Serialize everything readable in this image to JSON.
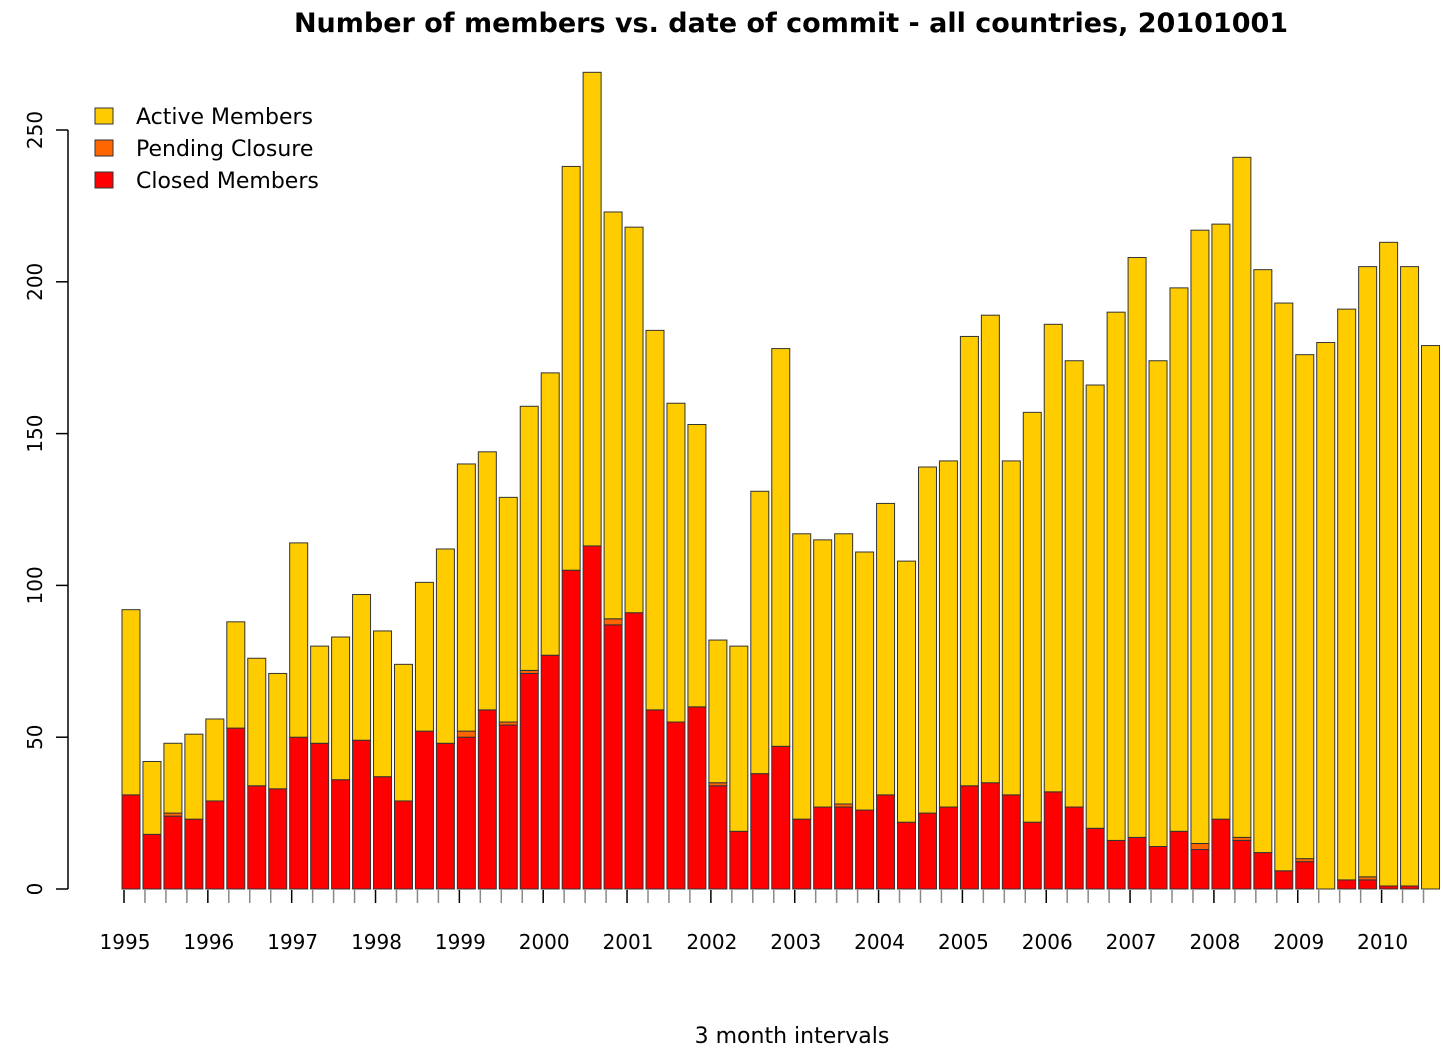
{
  "chart_data": {
    "type": "bar",
    "stacked": true,
    "title": "Number of members vs. date of commit - all countries,  20101001",
    "xlabel": "3 month intervals",
    "ylabel": "",
    "ylim": [
      0,
      270
    ],
    "yticks": [
      0,
      50,
      100,
      150,
      200,
      250
    ],
    "grid": false,
    "legend_position": "top-left",
    "xtick_labels": [
      "1995",
      "1996",
      "1997",
      "1998",
      "1999",
      "2000",
      "2001",
      "2002",
      "2003",
      "2004",
      "2005",
      "2006",
      "2007",
      "2008",
      "2009",
      "2010"
    ],
    "categories": [
      "1995 Q1",
      "1995 Q2",
      "1995 Q3",
      "1995 Q4",
      "1996 Q1",
      "1996 Q2",
      "1996 Q3",
      "1996 Q4",
      "1997 Q1",
      "1997 Q2",
      "1997 Q3",
      "1997 Q4",
      "1998 Q1",
      "1998 Q2",
      "1998 Q3",
      "1998 Q4",
      "1999 Q1",
      "1999 Q2",
      "1999 Q3",
      "1999 Q4",
      "2000 Q1",
      "2000 Q2",
      "2000 Q3",
      "2000 Q4",
      "2001 Q1",
      "2001 Q2",
      "2001 Q3",
      "2001 Q4",
      "2002 Q1",
      "2002 Q2",
      "2002 Q3",
      "2002 Q4",
      "2003 Q1",
      "2003 Q2",
      "2003 Q3",
      "2003 Q4",
      "2004 Q1",
      "2004 Q2",
      "2004 Q3",
      "2004 Q4",
      "2005 Q1",
      "2005 Q2",
      "2005 Q3",
      "2005 Q4",
      "2006 Q1",
      "2006 Q2",
      "2006 Q3",
      "2006 Q4",
      "2007 Q1",
      "2007 Q2",
      "2007 Q3",
      "2007 Q4",
      "2008 Q1",
      "2008 Q2",
      "2008 Q3",
      "2008 Q4",
      "2009 Q1",
      "2009 Q2",
      "2009 Q3",
      "2009 Q4",
      "2010 Q1",
      "2010 Q2",
      "2010 Q3"
    ],
    "series": [
      {
        "name": "Closed Members",
        "color": "#ff0000",
        "values": [
          31,
          18,
          24,
          23,
          29,
          53,
          34,
          33,
          50,
          48,
          36,
          49,
          37,
          29,
          52,
          48,
          50,
          59,
          54,
          71,
          77,
          105,
          113,
          87,
          91,
          59,
          55,
          60,
          34,
          19,
          38,
          47,
          23,
          27,
          27,
          26,
          31,
          22,
          25,
          27,
          34,
          35,
          31,
          22,
          32,
          27,
          20,
          16,
          17,
          14,
          19,
          13,
          23,
          16,
          12,
          6,
          9,
          0,
          3,
          3,
          1,
          1,
          0
        ]
      },
      {
        "name": "Pending Closure",
        "color": "#ff6600",
        "values": [
          0,
          0,
          1,
          0,
          0,
          0,
          0,
          0,
          0,
          0,
          0,
          0,
          0,
          0,
          0,
          0,
          2,
          0,
          1,
          1,
          0,
          0,
          0,
          2,
          0,
          0,
          0,
          0,
          1,
          0,
          0,
          0,
          0,
          0,
          1,
          0,
          0,
          0,
          0,
          0,
          0,
          0,
          0,
          0,
          0,
          0,
          0,
          0,
          0,
          0,
          0,
          2,
          0,
          1,
          0,
          0,
          1,
          0,
          0,
          1,
          0,
          0,
          0
        ]
      },
      {
        "name": "Active Members",
        "color": "#ffcc00",
        "values": [
          61,
          24,
          23,
          28,
          27,
          35,
          42,
          38,
          64,
          32,
          47,
          48,
          48,
          45,
          49,
          64,
          88,
          85,
          74,
          87,
          93,
          133,
          156,
          134,
          127,
          125,
          105,
          93,
          47,
          61,
          93,
          131,
          94,
          88,
          89,
          85,
          96,
          86,
          114,
          114,
          148,
          154,
          110,
          135,
          154,
          147,
          146,
          174,
          191,
          160,
          179,
          202,
          196,
          224,
          192,
          187,
          166,
          180,
          188,
          201,
          212,
          204,
          179
        ]
      }
    ]
  }
}
